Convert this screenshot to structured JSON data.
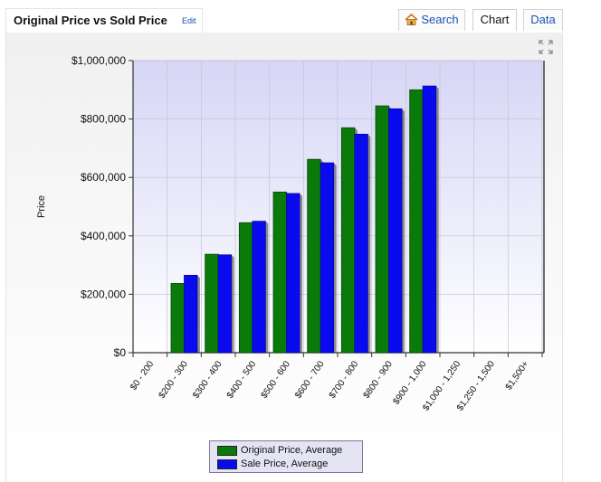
{
  "header": {
    "title": "Original Price vs Sold Price",
    "edit_label": "Edit",
    "tabs": {
      "search": "Search",
      "chart": "Chart",
      "data": "Data"
    },
    "active_tab": "Chart"
  },
  "colors": {
    "original_price": "#0a7a0a",
    "sale_price": "#0a0af0",
    "link": "#1a4fb5"
  },
  "chart_data": {
    "type": "bar",
    "title": "",
    "xlabel": "",
    "ylabel": "Price",
    "ylim": [
      0,
      1000000
    ],
    "yticks": [
      "$0",
      "$200,000",
      "$400,000",
      "$600,000",
      "$800,000",
      "$1,000,000"
    ],
    "grid": true,
    "legend_position": "bottom-center",
    "categories": [
      "$0 - 200",
      "$200 - 300",
      "$300 - 400",
      "$400 - 500",
      "$500 - 600",
      "$600 - 700",
      "$700 - 800",
      "$800 - 900",
      "$900 - 1,000",
      "$1,000 - 1,250",
      "$1,250 - 1,500",
      "$1,500+"
    ],
    "series": [
      {
        "name": "Original Price, Average",
        "values": [
          null,
          237000,
          337000,
          445000,
          550000,
          662000,
          770000,
          845000,
          900000,
          null,
          null,
          null
        ]
      },
      {
        "name": "Sale Price, Average",
        "values": [
          null,
          265000,
          335000,
          450000,
          545000,
          650000,
          748000,
          835000,
          913000,
          null,
          null,
          null
        ]
      }
    ]
  }
}
